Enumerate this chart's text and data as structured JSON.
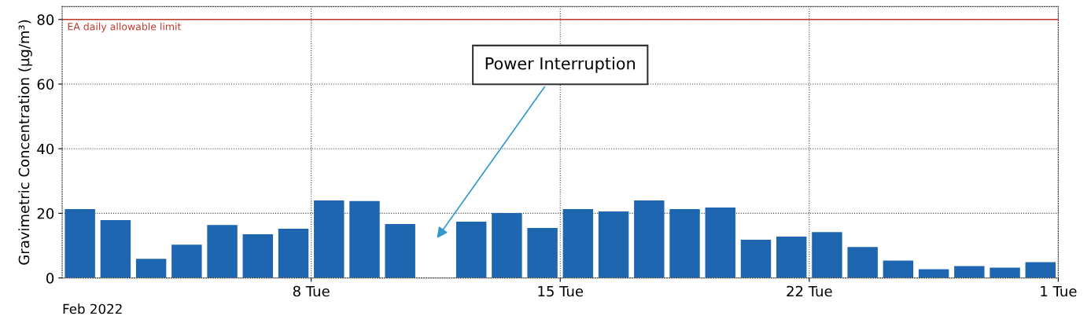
{
  "chart_data": {
    "type": "bar",
    "ylabel": "Gravimetric Concentration (µg/m³)",
    "xlabel": "Feb 2022",
    "x": [
      "2022-02-01T12:00",
      "2022-02-02T12:00",
      "2022-02-03T12:00",
      "2022-02-04T12:00",
      "2022-02-05T12:00",
      "2022-02-06T12:00",
      "2022-02-07T12:00",
      "2022-02-08T12:00",
      "2022-02-09T12:00",
      "2022-02-10T12:00",
      "2022-02-11T12:00",
      "2022-02-12T12:00",
      "2022-02-13T12:00",
      "2022-02-14T12:00",
      "2022-02-15T12:00",
      "2022-02-16T12:00",
      "2022-02-17T12:00",
      "2022-02-18T12:00",
      "2022-02-19T12:00",
      "2022-02-20T12:00",
      "2022-02-21T12:00",
      "2022-02-22T12:00",
      "2022-02-23T12:00",
      "2022-02-24T12:00",
      "2022-02-25T12:00",
      "2022-02-26T12:00",
      "2022-02-27T12:00",
      "2022-02-28T12:00"
    ],
    "values": [
      21.3,
      17.9,
      5.9,
      10.3,
      16.4,
      13.5,
      15.2,
      24.0,
      23.8,
      16.7,
      null,
      17.4,
      20.1,
      15.5,
      21.3,
      20.6,
      24.0,
      21.3,
      21.8,
      11.8,
      12.8,
      14.2,
      9.6,
      5.4,
      2.7,
      3.7,
      3.2,
      4.9
    ],
    "color": "#1f66b0",
    "xlim": [
      "2022-02-01",
      "2022-03-01"
    ],
    "xticks": [
      {
        "value": "2022-02-08",
        "label": "8 Tue"
      },
      {
        "value": "2022-02-15",
        "label": "15 Tue"
      },
      {
        "value": "2022-02-22",
        "label": "22 Tue"
      },
      {
        "value": "2022-03-01",
        "label": "1 Tue"
      }
    ],
    "ylim": [
      0,
      84
    ],
    "yticks": [
      0,
      20,
      40,
      60,
      80
    ],
    "grid": true,
    "ref_lines": [
      {
        "axis": "y",
        "value": 80,
        "label": "EA daily allowable limit",
        "color": "#c0392b"
      }
    ],
    "annotations": [
      "Power Interruption"
    ]
  }
}
